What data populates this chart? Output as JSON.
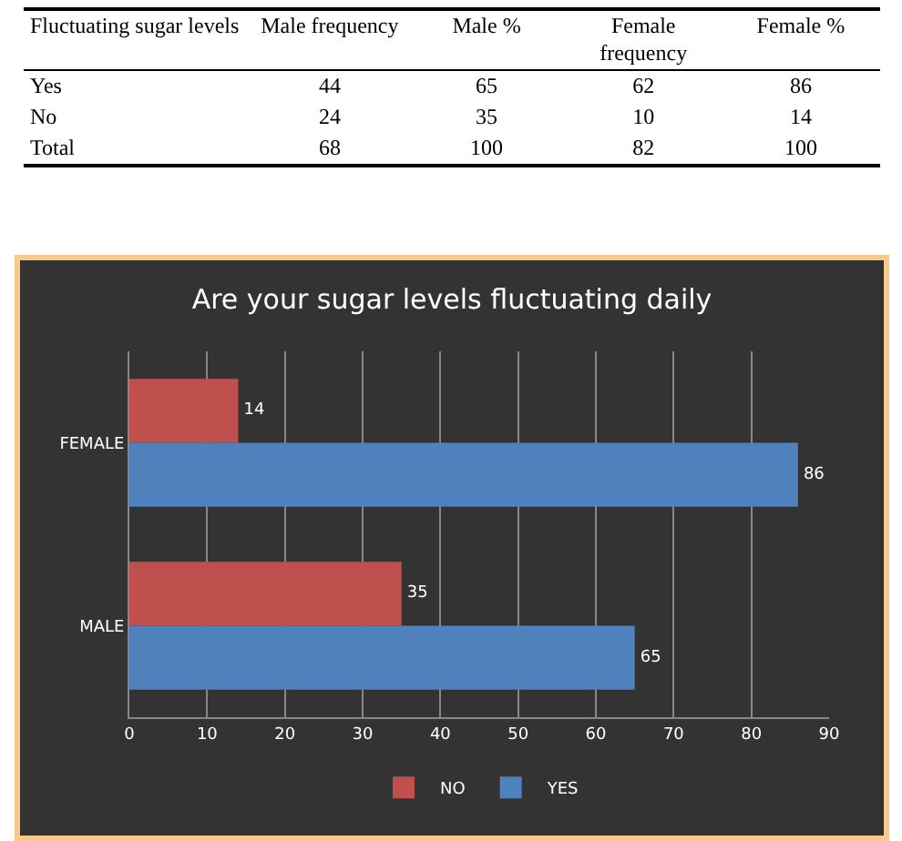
{
  "chart_data": [
    {
      "type": "other",
      "annotations": [
        "Fluctuating sugar levels",
        "Male frequency",
        "Male %",
        "Female frequency",
        "Female %",
        "Yes",
        "44",
        "65",
        "62",
        "86",
        "No",
        "24",
        "35",
        "10",
        "14",
        "Total",
        "68",
        "100",
        "82",
        "100"
      ]
    },
    {
      "type": "bar",
      "orientation": "horizontal",
      "title": "Are your sugar levels fluctuating daily",
      "categories": [
        "FEMALE",
        "MALE"
      ],
      "series": [
        {
          "name": "NO",
          "color": "#c0504d",
          "values": [
            14,
            35
          ]
        },
        {
          "name": "YES",
          "color": "#4f81bd",
          "values": [
            86,
            65
          ]
        }
      ],
      "xlim": [
        0,
        90
      ],
      "xticks": [
        0,
        10,
        20,
        30,
        40,
        50,
        60,
        70,
        80,
        90
      ],
      "grid": "x",
      "legend": "bottom",
      "data_labels": true
    }
  ]
}
